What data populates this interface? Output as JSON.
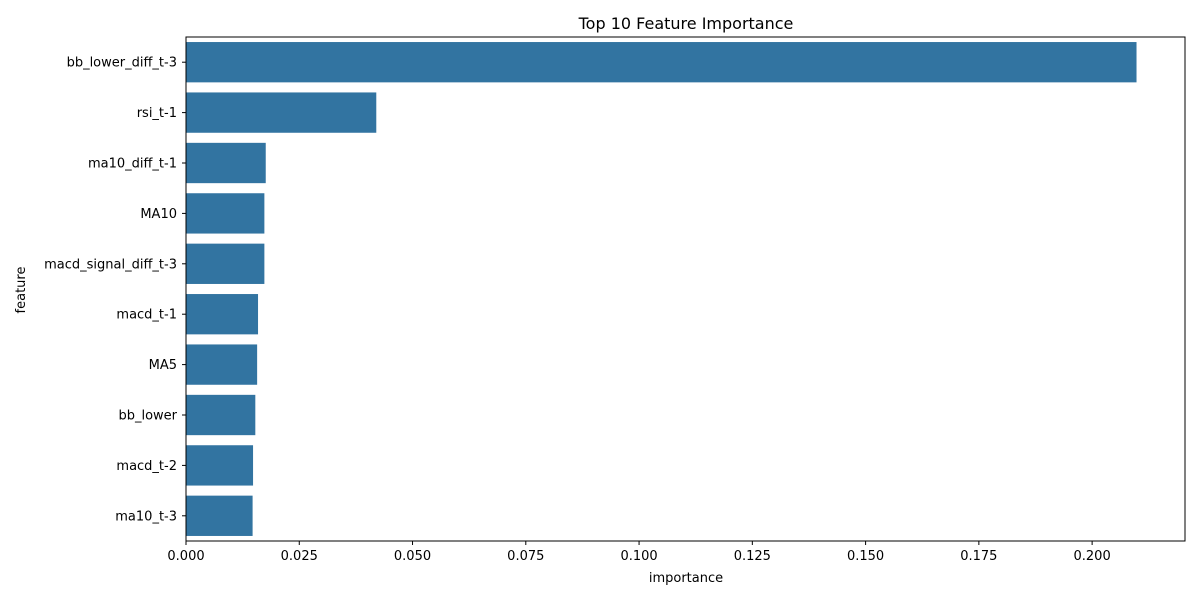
{
  "chart_data": {
    "type": "bar",
    "orientation": "horizontal",
    "title": "Top 10 Feature Importance",
    "xlabel": "importance",
    "ylabel": "feature",
    "categories": [
      "bb_lower_diff_t-3",
      "rsi_t-1",
      "ma10_diff_t-1",
      "MA10",
      "macd_signal_diff_t-3",
      "macd_t-1",
      "MA5",
      "bb_lower",
      "macd_t-2",
      "ma10_t-3"
    ],
    "values": [
      0.2098,
      0.042,
      0.0176,
      0.0173,
      0.0173,
      0.0159,
      0.0157,
      0.0153,
      0.0148,
      0.0147
    ],
    "xlim": [
      0,
      0.2205
    ],
    "xticks": [
      0.0,
      0.025,
      0.05,
      0.075,
      0.1,
      0.125,
      0.15,
      0.175,
      0.2
    ],
    "xtick_labels": [
      "0.000",
      "0.025",
      "0.050",
      "0.075",
      "0.100",
      "0.125",
      "0.150",
      "0.175",
      "0.200"
    ],
    "bar_color": "#3274a1",
    "grid": false,
    "legend": "none"
  }
}
